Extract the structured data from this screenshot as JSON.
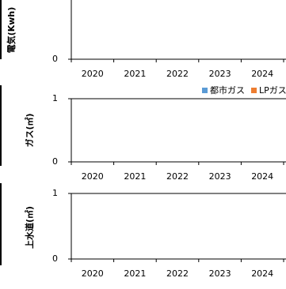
{
  "chart_data": [
    {
      "type": "bar",
      "ylabel": "電気(Kwh)",
      "categories": [
        "2020",
        "2021",
        "2022",
        "2023",
        "2024"
      ],
      "ylim": [
        0,
        1
      ],
      "yticks": [
        0
      ]
    },
    {
      "type": "bar",
      "ylabel": "ガス(㎡)",
      "categories": [
        "2020",
        "2021",
        "2022",
        "2023",
        "2024"
      ],
      "ylim": [
        0,
        1
      ],
      "yticks": [
        0,
        1
      ],
      "grid": true,
      "series": [
        {
          "name": "都市ガス",
          "color": "#5b9bd5"
        },
        {
          "name": "LPガス",
          "color": "#ed7d31"
        }
      ],
      "legend": "top-right"
    },
    {
      "type": "bar",
      "ylabel": "上水道(㎡)",
      "categories": [
        "2020",
        "2021",
        "2022",
        "2023",
        "2024"
      ],
      "ylim": [
        0,
        1
      ],
      "yticks": [
        0,
        1
      ],
      "grid": true
    }
  ]
}
